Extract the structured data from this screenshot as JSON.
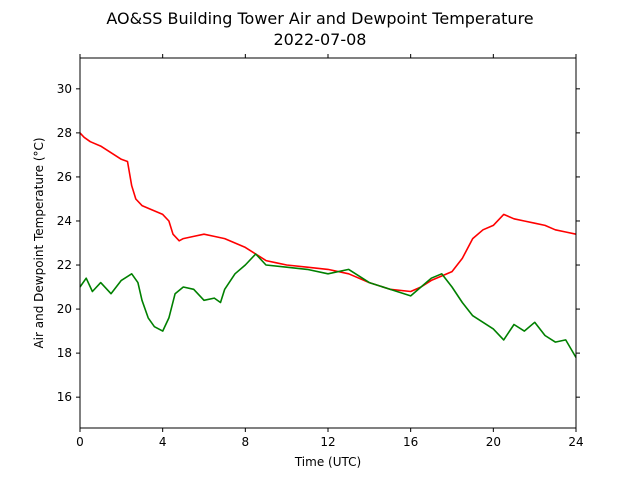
{
  "chart_data": {
    "type": "line",
    "title": "AO&SS Building Tower Air and Dewpoint Temperature",
    "subtitle": "2022-07-08",
    "xlabel": "Time (UTC)",
    "ylabel": "Air and Dewpoint Temperature (°C)",
    "xlim": [
      0,
      24
    ],
    "ylim": [
      14.6,
      31.4
    ],
    "x_ticks": [
      0,
      4,
      8,
      12,
      16,
      20,
      24
    ],
    "y_ticks": [
      16,
      18,
      20,
      22,
      24,
      26,
      28,
      30
    ],
    "grid": false,
    "legend": "none",
    "series": [
      {
        "color": "#ff0000",
        "x": [
          0,
          0.2,
          0.5,
          1.0,
          1.5,
          2.0,
          2.3,
          2.5,
          2.7,
          3.0,
          3.5,
          4.0,
          4.3,
          4.5,
          4.8,
          5.0,
          5.5,
          6.0,
          6.5,
          7.0,
          7.5,
          8.0,
          8.5,
          9.0,
          9.5,
          10.0,
          11.0,
          12.0,
          13.0,
          14.0,
          15.0,
          16.0,
          16.5,
          17.0,
          17.5,
          18.0,
          18.5,
          19.0,
          19.5,
          20.0,
          20.5,
          21.0,
          21.5,
          22.0,
          22.5,
          23.0,
          23.5,
          24.0
        ],
        "y": [
          28.0,
          27.8,
          27.6,
          27.4,
          27.1,
          26.8,
          26.7,
          25.6,
          25.0,
          24.7,
          24.5,
          24.3,
          24.0,
          23.4,
          23.1,
          23.2,
          23.3,
          23.4,
          23.3,
          23.2,
          23.0,
          22.8,
          22.5,
          22.2,
          22.1,
          22.0,
          21.9,
          21.8,
          21.6,
          21.2,
          20.9,
          20.8,
          21.0,
          21.3,
          21.5,
          21.7,
          22.3,
          23.2,
          23.6,
          23.8,
          24.3,
          24.1,
          24.0,
          23.9,
          23.8,
          23.6,
          23.5,
          23.4
        ]
      },
      {
        "color": "#008000",
        "x": [
          0,
          0.3,
          0.6,
          1.0,
          1.5,
          2.0,
          2.5,
          2.8,
          3.0,
          3.3,
          3.6,
          4.0,
          4.3,
          4.6,
          5.0,
          5.5,
          6.0,
          6.5,
          6.8,
          7.0,
          7.5,
          8.0,
          8.5,
          9.0,
          10.0,
          11.0,
          12.0,
          13.0,
          14.0,
          15.0,
          16.0,
          16.5,
          17.0,
          17.5,
          18.0,
          18.5,
          19.0,
          19.5,
          20.0,
          20.5,
          21.0,
          21.5,
          22.0,
          22.5,
          23.0,
          23.5,
          24.0
        ],
        "y": [
          21.0,
          21.4,
          20.8,
          21.2,
          20.7,
          21.3,
          21.6,
          21.2,
          20.4,
          19.6,
          19.2,
          19.0,
          19.6,
          20.7,
          21.0,
          20.9,
          20.4,
          20.5,
          20.3,
          20.9,
          21.6,
          22.0,
          22.5,
          22.0,
          21.9,
          21.8,
          21.6,
          21.8,
          21.2,
          20.9,
          20.6,
          21.0,
          21.4,
          21.6,
          21.0,
          20.3,
          19.7,
          19.4,
          19.1,
          18.6,
          19.3,
          19.0,
          19.4,
          18.8,
          18.5,
          18.6,
          17.8
        ]
      }
    ]
  }
}
